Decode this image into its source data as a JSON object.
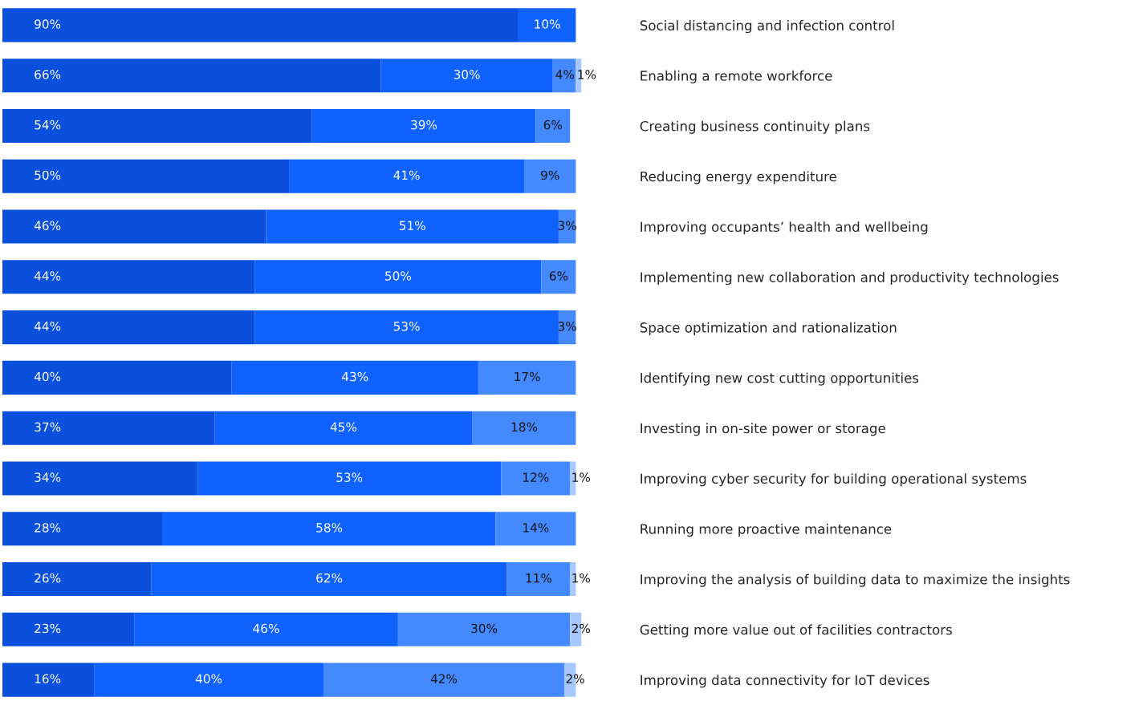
{
  "chart_data": {
    "type": "bar",
    "orientation": "horizontal",
    "stacked": true,
    "categories": [
      "Social distancing and infection control",
      "Enabling a remote workforce",
      "Creating business continuity plans",
      "Reducing energy expenditure",
      "Improving occupants’ health and wellbeing",
      "Implementing new collaboration and productivity technologies",
      "Space optimization and rationalization",
      "Identifying new cost cutting opportunities",
      "Investing in on-site power or storage",
      "Improving cyber security for building operational systems",
      "Running more proactive maintenance",
      "Improving the analysis of building data to maximize the insights",
      "Getting more value out of facilities contractors",
      "Improving data connectivity for IoT devices"
    ],
    "series": [
      {
        "color": "#0a50dc",
        "values": [
          90,
          66,
          54,
          50,
          46,
          44,
          44,
          40,
          37,
          34,
          28,
          26,
          23,
          16
        ],
        "value_labels": [
          "90%",
          "66%",
          "54%",
          "50%",
          "46%",
          "44%",
          "44%",
          "40%",
          "37%",
          "34%",
          "28%",
          "26%",
          "23%",
          "16%"
        ]
      },
      {
        "color": "#0f62fe",
        "values": [
          10,
          30,
          39,
          41,
          51,
          50,
          53,
          43,
          45,
          53,
          58,
          62,
          46,
          40
        ],
        "value_labels": [
          "10%",
          "30%",
          "39%",
          "41%",
          "51%",
          "50%",
          "53%",
          "43%",
          "45%",
          "53%",
          "58%",
          "62%",
          "46%",
          "40%"
        ]
      },
      {
        "color": "#4589ff",
        "values": [
          null,
          4,
          6,
          9,
          3,
          6,
          3,
          17,
          18,
          12,
          14,
          11,
          30,
          42
        ],
        "value_labels": [
          null,
          "4%",
          "6%",
          "9%",
          "3%",
          "6%",
          "3%",
          "17%",
          "18%",
          "12%",
          "14%",
          "11%",
          "30%",
          "42%"
        ]
      },
      {
        "color": "#a6c8ff",
        "values": [
          null,
          1,
          null,
          null,
          null,
          null,
          null,
          null,
          null,
          1,
          null,
          1,
          2,
          2
        ],
        "value_labels": [
          null,
          "1%",
          null,
          null,
          null,
          null,
          null,
          null,
          null,
          "1%",
          null,
          "1%",
          "2%",
          "2%"
        ]
      }
    ]
  }
}
